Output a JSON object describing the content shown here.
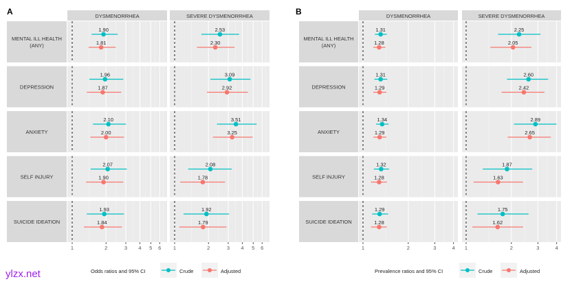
{
  "watermark": "ylzx.net",
  "colors": {
    "crude": "#00BFC4",
    "adjusted": "#F8766D",
    "panel_bg": "#EBEBEB",
    "strip_bg": "#D9D9D9",
    "watermark": "#A020F0"
  },
  "chart_data": [
    {
      "type": "forest",
      "panel_label": "A",
      "legend_title": "Odds ratios and 95% CI",
      "legend": [
        "Crude",
        "Adjusted"
      ],
      "x_scale": "log",
      "reference_line": 1,
      "facets": [
        {
          "title": "DYSMENORRHEA",
          "ticks": [
            "1",
            "2",
            "3",
            "4",
            "5",
            "6"
          ]
        },
        {
          "title": "SEVERE DYSMENORRHEA",
          "ticks": [
            "1",
            "2",
            "3",
            "4",
            "5",
            "6"
          ]
        }
      ],
      "rows": [
        {
          "outcome": "MENTAL ILL HEALTH\n(ANY)",
          "values": [
            {
              "crude": {
                "est": 1.9,
                "label": "1.90",
                "lo": 1.49,
                "hi": 2.54
              },
              "adjusted": {
                "est": 1.81,
                "label": "1.81",
                "lo": 1.4,
                "hi": 2.44
              }
            },
            {
              "crude": {
                "est": 2.53,
                "label": "2.53",
                "lo": 1.73,
                "hi": 3.75
              },
              "adjusted": {
                "est": 2.3,
                "label": "2.30",
                "lo": 1.58,
                "hi": 3.41
              }
            }
          ]
        },
        {
          "outcome": "DEPRESSION",
          "values": [
            {
              "crude": {
                "est": 1.96,
                "label": "1.96",
                "lo": 1.42,
                "hi": 2.85
              },
              "adjusted": {
                "est": 1.87,
                "label": "1.87",
                "lo": 1.35,
                "hi": 2.73
              }
            },
            {
              "crude": {
                "est": 3.09,
                "label": "3.09",
                "lo": 2.08,
                "hi": 4.73
              },
              "adjusted": {
                "est": 2.92,
                "label": "2.92",
                "lo": 1.94,
                "hi": 4.49
              }
            }
          ]
        },
        {
          "outcome": "ANXIETY",
          "values": [
            {
              "crude": {
                "est": 2.1,
                "label": "2.10",
                "lo": 1.53,
                "hi": 3.01
              },
              "adjusted": {
                "est": 2.0,
                "label": "2.00",
                "lo": 1.45,
                "hi": 2.89
              }
            },
            {
              "crude": {
                "est": 3.51,
                "label": "3.51",
                "lo": 2.38,
                "hi": 5.37
              },
              "adjusted": {
                "est": 3.25,
                "label": "3.25",
                "lo": 2.19,
                "hi": 4.95
              }
            }
          ]
        },
        {
          "outcome": "SELF INJURY",
          "values": [
            {
              "crude": {
                "est": 2.07,
                "label": "2.07",
                "lo": 1.46,
                "hi": 3.06
              },
              "adjusted": {
                "est": 1.9,
                "label": "1.90",
                "lo": 1.33,
                "hi": 2.85
              }
            },
            {
              "crude": {
                "est": 2.08,
                "label": "2.08",
                "lo": 1.32,
                "hi": 3.22
              },
              "adjusted": {
                "est": 1.78,
                "label": "1.78",
                "lo": 1.12,
                "hi": 2.81
              }
            }
          ]
        },
        {
          "outcome": "SUICIDE IDEATION",
          "values": [
            {
              "crude": {
                "est": 1.93,
                "label": "1.93",
                "lo": 1.35,
                "hi": 2.89
              },
              "adjusted": {
                "est": 1.84,
                "label": "1.84",
                "lo": 1.27,
                "hi": 2.77
              }
            },
            {
              "crude": {
                "est": 1.92,
                "label": "1.92",
                "lo": 1.2,
                "hi": 3.05
              },
              "adjusted": {
                "est": 1.79,
                "label": "1.79",
                "lo": 1.1,
                "hi": 2.89
              }
            }
          ]
        }
      ]
    },
    {
      "type": "forest",
      "panel_label": "B",
      "legend_title": "Prevalence ratios and 95% CI",
      "legend": [
        "Crude",
        "Adjusted"
      ],
      "x_scale": "log",
      "reference_line": 1,
      "facets": [
        {
          "title": "DYSMENORRHEA",
          "ticks": [
            "1",
            "2",
            "3",
            "4"
          ]
        },
        {
          "title": "SEVERE DYSMENORRHEA",
          "ticks": [
            "1",
            "2",
            "3",
            "4"
          ]
        }
      ],
      "rows": [
        {
          "outcome": "MENTAL ILL HEALTH\n(ANY)",
          "values": [
            {
              "crude": {
                "est": 1.31,
                "label": "1.31",
                "lo": 1.2,
                "hi": 1.44
              },
              "adjusted": {
                "est": 1.28,
                "label": "1.28",
                "lo": 1.17,
                "hi": 1.41
              }
            },
            {
              "crude": {
                "est": 2.25,
                "label": "2.25",
                "lo": 1.63,
                "hi": 3.12
              },
              "adjusted": {
                "est": 2.05,
                "label": "2.05",
                "lo": 1.45,
                "hi": 2.72
              }
            }
          ]
        },
        {
          "outcome": "DEPRESSION",
          "values": [
            {
              "crude": {
                "est": 1.31,
                "label": "1.31",
                "lo": 1.19,
                "hi": 1.45
              },
              "adjusted": {
                "est": 1.29,
                "label": "1.29",
                "lo": 1.17,
                "hi": 1.43
              }
            },
            {
              "crude": {
                "est": 2.6,
                "label": "2.60",
                "lo": 1.87,
                "hi": 3.51
              },
              "adjusted": {
                "est": 2.42,
                "label": "2.42",
                "lo": 1.72,
                "hi": 3.32
              }
            }
          ]
        },
        {
          "outcome": "ANXIETY",
          "values": [
            {
              "crude": {
                "est": 1.34,
                "label": "1.34",
                "lo": 1.22,
                "hi": 1.48
              },
              "adjusted": {
                "est": 1.29,
                "label": "1.29",
                "lo": 1.17,
                "hi": 1.43
              }
            },
            {
              "crude": {
                "est": 2.89,
                "label": "2.89",
                "lo": 2.08,
                "hi": 3.99
              },
              "adjusted": {
                "est": 2.65,
                "label": "2.65",
                "lo": 1.89,
                "hi": 3.66
              }
            }
          ]
        },
        {
          "outcome": "SELF INJURY",
          "values": [
            {
              "crude": {
                "est": 1.32,
                "label": "1.32",
                "lo": 1.18,
                "hi": 1.49
              },
              "adjusted": {
                "est": 1.28,
                "label": "1.28",
                "lo": 1.13,
                "hi": 1.44
              }
            },
            {
              "crude": {
                "est": 1.87,
                "label": "1.87",
                "lo": 1.29,
                "hi": 2.75
              },
              "adjusted": {
                "est": 1.63,
                "label": "1.63",
                "lo": 1.12,
                "hi": 2.39
              }
            }
          ]
        },
        {
          "outcome": "SUICIDE IDEATION",
          "values": [
            {
              "crude": {
                "est": 1.29,
                "label": "1.29",
                "lo": 1.15,
                "hi": 1.47
              },
              "adjusted": {
                "est": 1.28,
                "label": "1.28",
                "lo": 1.13,
                "hi": 1.44
              }
            },
            {
              "crude": {
                "est": 1.75,
                "label": "1.75",
                "lo": 1.19,
                "hi": 2.6
              },
              "adjusted": {
                "est": 1.62,
                "label": "1.62",
                "lo": 1.1,
                "hi": 2.39
              }
            }
          ]
        }
      ]
    }
  ]
}
